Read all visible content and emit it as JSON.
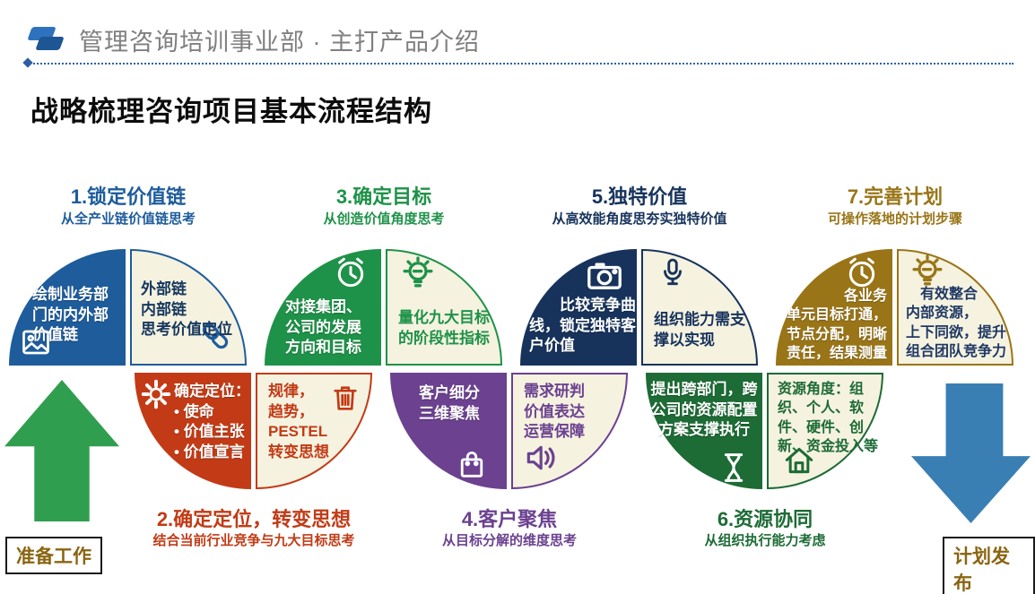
{
  "header": {
    "title": "管理咨询培训事业部 · 主打产品介绍"
  },
  "page_title": "战略梳理咨询项目基本流程结构",
  "theme": {
    "cream": "#f5f2e0",
    "header_text": "#7f7f7f",
    "line": "#2e5fa3",
    "logo_front": "#2e72be",
    "logo_back": "#1d5693"
  },
  "steps": [
    {
      "title": "1.锁定价值链",
      "color": "#1e5c9c",
      "sub_pre": "从全产业链价值链思考",
      "sub_bold": "",
      "sub_post": "",
      "left": {
        "text": "绘制业务部\n门的内外部\n价值链",
        "icon": "image"
      },
      "right": {
        "text": "外部链\n内部链\n思考价值定位",
        "icon": "link",
        "text_color": "#17375e"
      }
    },
    {
      "title": "2.确定定位，转变思想",
      "color": "#c23b16",
      "sub_pre": "结合",
      "sub_bold": "当前行业竞争",
      "sub_post": "与九大目标思考",
      "left": {
        "text": "确定定位：\n• 使命\n• 价值主张\n• 价值宣言",
        "icon": "gear"
      },
      "right": {
        "text": "规律，\n趋势，\nPESTEL\n转变思想",
        "icon": "trash",
        "text_color": "#c23b16"
      }
    },
    {
      "title": "3.确定目标",
      "color": "#1e9248",
      "sub_pre": "从创造价值角度思考",
      "sub_bold": "",
      "sub_post": "",
      "left": {
        "text": "对接集团、\n公司的发展\n方向和目标",
        "icon": "clock"
      },
      "right": {
        "text": "量化九大目标\n的阶段性指标",
        "icon": "bulb",
        "text_color": "#1e9248"
      }
    },
    {
      "title": "4.客户聚焦",
      "color": "#6b4190",
      "sub_pre": "从",
      "sub_bold": "目标分解",
      "sub_post": "的维度思考",
      "left": {
        "text": "客户细分\n三维聚焦",
        "icon": "bag"
      },
      "right": {
        "text": "需求研判\n价值表达\n运营保障",
        "icon": "speaker",
        "text_color": "#6b4190"
      }
    },
    {
      "title": "5.独特价值",
      "color": "#17335c",
      "sub_pre": "从",
      "sub_bold": "高效能",
      "sub_post": "角度思夯实独特价值",
      "left": {
        "text": "　　比较竞争曲\n线，锁定独特客\n户价值",
        "icon": "camera"
      },
      "right": {
        "text": "组织能力需支\n撑以实现",
        "icon": "mic",
        "text_color": "#17335c"
      }
    },
    {
      "title": "6.资源协同",
      "color": "#1d6b35",
      "sub_pre": "从",
      "sub_bold": "组织执行能力",
      "sub_post": "考虑",
      "left": {
        "text": "提出跨部门，跨\n公司的资源配置\n方案支撑执行",
        "icon": "hourglass"
      },
      "right": {
        "text": "资源角度：组\n织、个人、软\n件、硬件、创\n新、资金投入等",
        "icon": "home",
        "text_color": "#1d6b35"
      }
    },
    {
      "title": "7.完善计划",
      "color": "#997518",
      "sub_pre": "可操作落地的计划步骤",
      "sub_bold": "",
      "sub_post": "",
      "left": {
        "text": "各业务\n单元目标打通，\n节点分配，明晰\n责任，结果测量",
        "icon": "clock"
      },
      "right": {
        "text": "　有效整合\n内部资源，\n上下同欲，提升\n组合团队竞争力",
        "icon": "bulb",
        "text_color": "#1f3864"
      }
    }
  ],
  "footer": {
    "start_label": "准备工作",
    "end_label": "计划发布",
    "label_color": "#8a6410",
    "up_arrow_color": "#2f9e4e",
    "down_arrow_color": "#3a7fb4"
  }
}
